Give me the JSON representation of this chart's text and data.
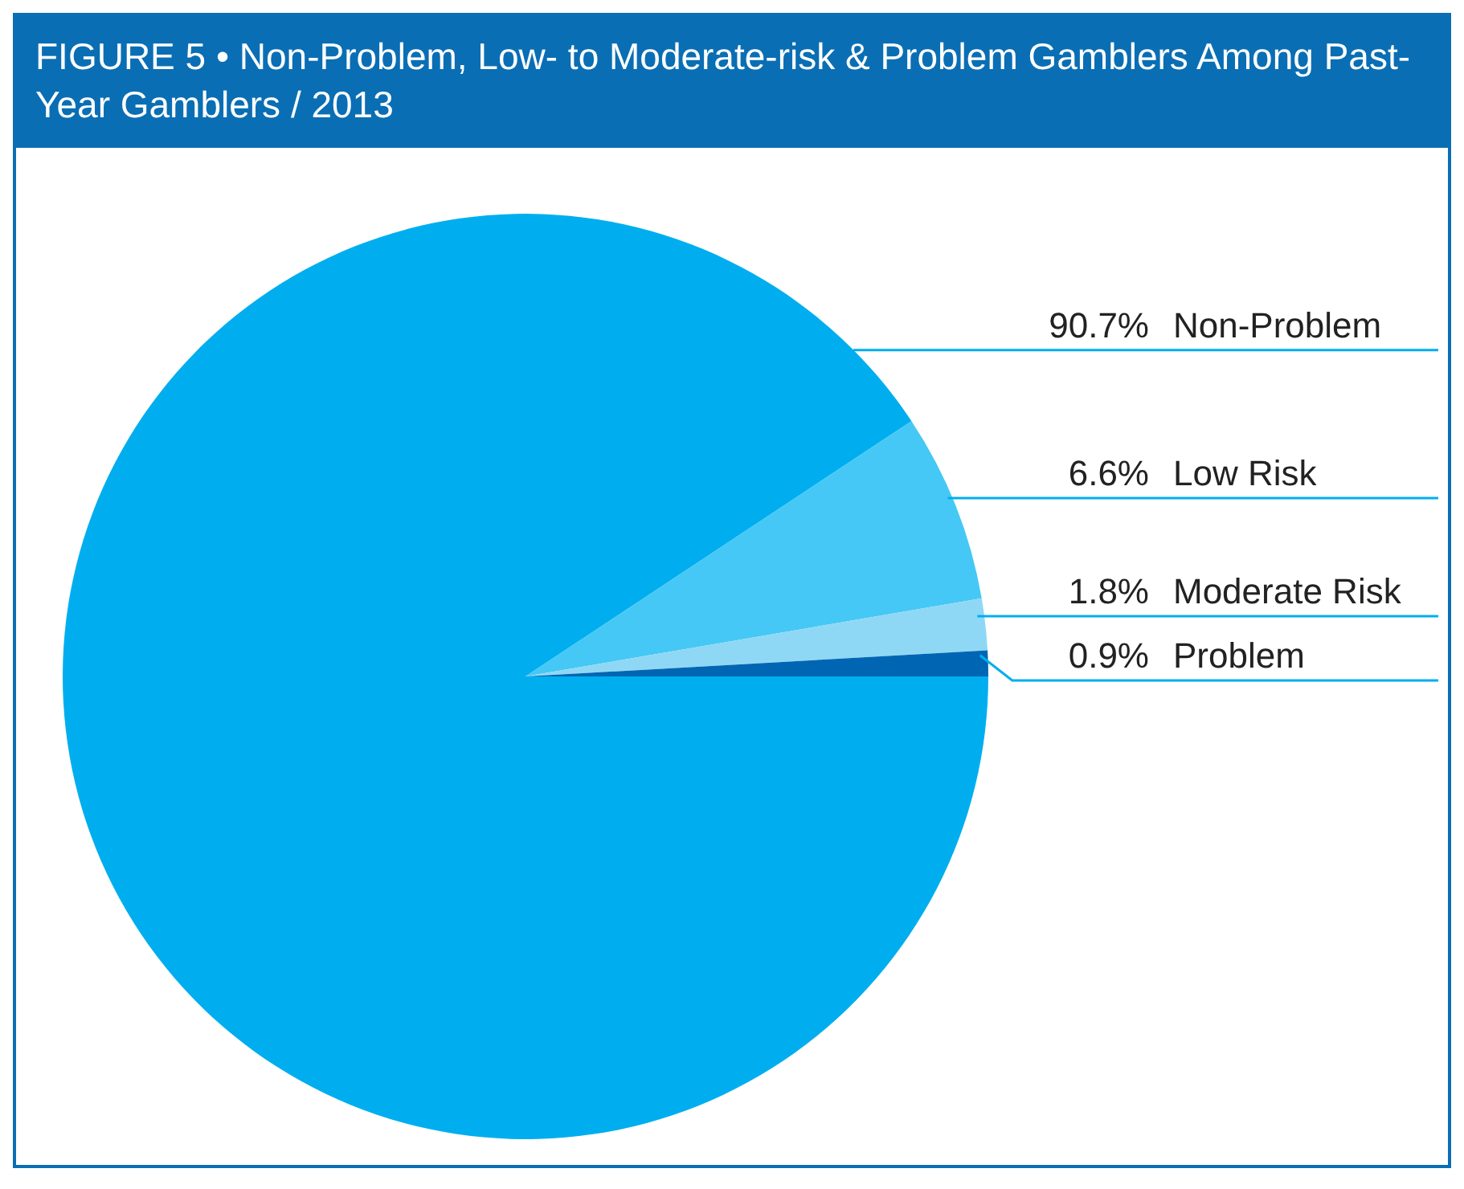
{
  "chart_data": {
    "type": "pie",
    "title": "FIGURE 5 • Non-Problem, Low- to Moderate-risk & Problem Gamblers Among Past-Year Gamblers / 2013",
    "categories": [
      "Non-Problem",
      "Low Risk",
      "Moderate Risk",
      "Problem"
    ],
    "values": [
      90.7,
      6.6,
      1.8,
      0.9
    ],
    "value_labels": [
      "90.7%",
      "6.6%",
      "1.8%",
      "0.9%"
    ],
    "colors": [
      "#00aeef",
      "#45c8f5",
      "#8fd8f5",
      "#0066b3"
    ]
  }
}
